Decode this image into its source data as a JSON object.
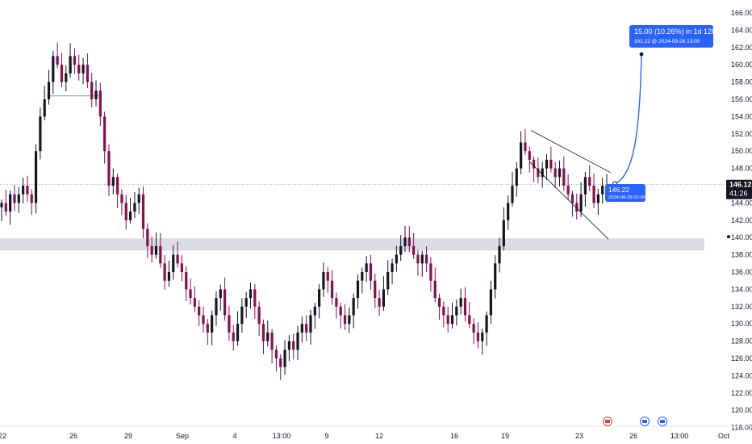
{
  "chart_data": {
    "type": "candlestick",
    "grid": false,
    "colors": {
      "up": "#131722",
      "down": "#880e4f",
      "accent": "#2962ff",
      "zone": "#d1d4dc"
    },
    "y_axis": {
      "ylim": [
        116,
        167
      ],
      "ticks": [
        "166.00",
        "164.00",
        "162.00",
        "160.00",
        "158.00",
        "156.00",
        "154.00",
        "152.00",
        "150.00",
        "148.00",
        "146.00",
        "144.00",
        "142.00",
        "140.00",
        "138.00",
        "136.00",
        "134.00",
        "132.00",
        "130.00",
        "128.00",
        "126.00",
        "124.00",
        "122.00",
        "120.00",
        "118.00"
      ]
    },
    "x_axis": {
      "ticks": [
        "22",
        "26",
        "29",
        "Sep",
        "4",
        "13:00",
        "9",
        "12",
        "16",
        "19",
        "23",
        "26",
        "13:00",
        "Oct"
      ]
    },
    "price_tag": {
      "price": "146.12",
      "countdown": "41:26"
    },
    "marker_label": {
      "price": "146.22",
      "datetime": "2024-09-25 01:00"
    },
    "projection_label": {
      "headline": "15.00 (10.26%) in 1d 12h",
      "detail": "161.22 @ 2024-09-26  13:00"
    },
    "projection": {
      "from_price": 146.22,
      "to_price": 161.22
    },
    "support_zone": {
      "low": 138.5,
      "high": 139.9
    },
    "resistance_line": {
      "price": 156.4
    },
    "channel": {
      "upper": [
        152.4,
        147.5
      ],
      "lower": [
        148.8,
        139.8
      ]
    },
    "candles_close_path": [
      [
        144,
        2
      ],
      [
        143,
        3
      ],
      [
        145,
        2
      ],
      [
        144,
        2
      ],
      [
        145,
        2
      ],
      [
        146,
        2
      ],
      [
        145,
        2
      ],
      [
        144,
        2
      ],
      [
        150,
        3
      ],
      [
        154,
        3
      ],
      [
        156,
        3
      ],
      [
        158,
        3
      ],
      [
        161,
        3
      ],
      [
        160,
        3
      ],
      [
        158,
        3
      ],
      [
        159,
        3
      ],
      [
        161,
        3
      ],
      [
        160,
        3
      ],
      [
        159,
        3
      ],
      [
        160,
        3
      ],
      [
        158,
        3
      ],
      [
        156,
        3
      ],
      [
        157,
        3
      ],
      [
        154,
        3
      ],
      [
        150,
        3
      ],
      [
        146,
        3
      ],
      [
        147,
        3
      ],
      [
        145,
        3
      ],
      [
        144,
        3
      ],
      [
        142,
        3
      ],
      [
        143,
        3
      ],
      [
        144,
        3
      ],
      [
        145,
        3
      ],
      [
        141,
        3
      ],
      [
        139,
        3
      ],
      [
        138,
        3
      ],
      [
        139,
        3
      ],
      [
        137,
        3
      ],
      [
        135,
        3
      ],
      [
        136,
        3
      ],
      [
        138,
        3
      ],
      [
        137,
        3
      ],
      [
        136,
        3
      ],
      [
        134,
        3
      ],
      [
        133,
        3
      ],
      [
        132,
        3
      ],
      [
        131,
        3
      ],
      [
        130,
        3
      ],
      [
        129,
        3
      ],
      [
        131,
        3
      ],
      [
        133,
        3
      ],
      [
        134,
        3
      ],
      [
        131,
        3
      ],
      [
        129,
        3
      ],
      [
        128,
        3
      ],
      [
        130,
        3
      ],
      [
        132,
        3
      ],
      [
        133,
        3
      ],
      [
        134,
        3
      ],
      [
        132,
        3
      ],
      [
        130,
        3
      ],
      [
        128,
        3
      ],
      [
        129,
        3
      ],
      [
        127,
        3
      ],
      [
        126,
        3
      ],
      [
        125,
        3
      ],
      [
        127,
        3
      ],
      [
        128,
        3
      ],
      [
        127,
        3
      ],
      [
        129,
        3
      ],
      [
        130,
        3
      ],
      [
        129,
        3
      ],
      [
        131,
        3
      ],
      [
        132,
        3
      ],
      [
        134,
        3
      ],
      [
        136,
        3
      ],
      [
        135,
        3
      ],
      [
        133,
        3
      ],
      [
        132,
        3
      ],
      [
        131,
        3
      ],
      [
        130,
        3
      ],
      [
        131,
        3
      ],
      [
        133,
        3
      ],
      [
        135,
        3
      ],
      [
        136,
        3
      ],
      [
        137,
        3
      ],
      [
        135,
        3
      ],
      [
        133,
        3
      ],
      [
        132,
        3
      ],
      [
        134,
        3
      ],
      [
        136,
        3
      ],
      [
        137,
        3
      ],
      [
        138,
        3
      ],
      [
        139,
        3
      ],
      [
        140,
        3
      ],
      [
        139,
        3
      ],
      [
        138,
        3
      ],
      [
        137,
        3
      ],
      [
        138,
        3
      ],
      [
        137,
        3
      ],
      [
        135,
        3
      ],
      [
        133,
        3
      ],
      [
        132,
        3
      ],
      [
        131,
        3
      ],
      [
        130,
        3
      ],
      [
        131,
        3
      ],
      [
        132,
        3
      ],
      [
        133,
        3
      ],
      [
        131,
        3
      ],
      [
        130,
        3
      ],
      [
        129,
        3
      ],
      [
        128,
        3
      ],
      [
        129,
        3
      ],
      [
        131,
        3
      ],
      [
        134,
        3
      ],
      [
        137,
        3
      ],
      [
        139,
        3
      ],
      [
        142,
        3
      ],
      [
        144,
        3
      ],
      [
        146,
        3
      ],
      [
        148,
        3
      ],
      [
        151,
        3
      ],
      [
        150,
        3
      ],
      [
        149,
        3
      ],
      [
        148,
        3
      ],
      [
        147,
        3
      ],
      [
        148,
        3
      ],
      [
        149,
        3
      ],
      [
        148,
        3
      ],
      [
        147,
        3
      ],
      [
        148,
        3
      ],
      [
        146,
        3
      ],
      [
        145,
        3
      ],
      [
        144,
        3
      ],
      [
        143,
        3
      ],
      [
        145,
        3
      ],
      [
        147,
        3
      ],
      [
        146,
        3
      ],
      [
        144,
        3
      ],
      [
        145,
        3
      ],
      [
        146,
        3
      ],
      [
        146,
        3
      ]
    ]
  }
}
